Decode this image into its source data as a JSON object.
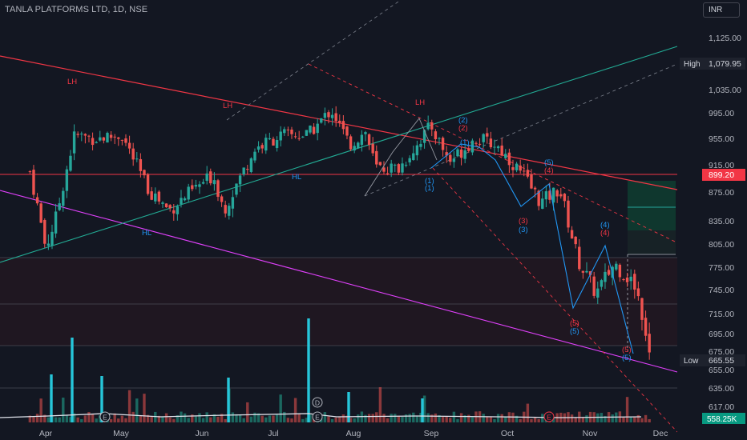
{
  "header": {
    "symbol_title": "TANLA PLATFORMS LTD, 1D, NSE",
    "currency": "INR"
  },
  "colors": {
    "background": "#131722",
    "up": "#26a69a",
    "down": "#ef5350",
    "volume": "#22ab94",
    "volume_spike": "#26c6da",
    "channel_top": "#f23645",
    "channel_bottom": "#e040fb",
    "trend_up": "#22ab94",
    "wave_blue": "#2196f3",
    "price_label": "#f23645",
    "volume_label": "#089981"
  },
  "chart_data": {
    "type": "candlestick",
    "x_tick_labels": [
      "Apr",
      "May",
      "Jun",
      "Jul",
      "Aug",
      "Sep",
      "Oct",
      "Nov",
      "Dec"
    ],
    "y_tick_labels": [
      "1,125.00",
      "1,035.00",
      "995.00",
      "955.00",
      "915.00",
      "875.00",
      "835.00",
      "805.00",
      "775.00",
      "745.00",
      "715.00",
      "695.00",
      "675.00",
      "655.00",
      "635.00",
      "617.00"
    ],
    "y_ticks": [
      1125,
      1035,
      995,
      955,
      915,
      875,
      835,
      805,
      775,
      745,
      715,
      695,
      675,
      655,
      635,
      617
    ],
    "high_label": "High",
    "high_value": "1,079.95",
    "low_label": "Low",
    "low_value": "665.55",
    "current_price": "899.20",
    "volume_label": "558.25K",
    "pattern_labels": {
      "lh": "LH",
      "hl": "HL",
      "w1": "(1)",
      "w2": "(2)",
      "w3": "(3)",
      "w4": "(4)",
      "w5": "(5)"
    },
    "event_markers": {
      "earnings": "E",
      "dividend": "D"
    },
    "approx_path": [
      [
        "2024-03-26",
        905
      ],
      [
        "2024-04-01",
        800
      ],
      [
        "2024-04-05",
        840
      ],
      [
        "2024-04-12",
        960
      ],
      [
        "2024-04-20",
        955
      ],
      [
        "2024-04-30",
        960
      ],
      [
        "2024-05-10",
        880
      ],
      [
        "2024-05-18",
        850
      ],
      [
        "2024-05-28",
        880
      ],
      [
        "2024-06-04",
        900
      ],
      [
        "2024-06-08",
        850
      ],
      [
        "2024-06-20",
        940
      ],
      [
        "2024-06-30",
        960
      ],
      [
        "2024-07-10",
        960
      ],
      [
        "2024-07-19",
        1000
      ],
      [
        "2024-07-26",
        945
      ],
      [
        "2024-08-01",
        965
      ],
      [
        "2024-08-05",
        910
      ],
      [
        "2024-08-14",
        910
      ],
      [
        "2024-08-26",
        975
      ],
      [
        "2024-09-02",
        920
      ],
      [
        "2024-09-12",
        955
      ],
      [
        "2024-09-20",
        945
      ],
      [
        "2024-09-30",
        900
      ],
      [
        "2024-10-07",
        860
      ],
      [
        "2024-10-14",
        880
      ],
      [
        "2024-10-21",
        785
      ],
      [
        "2024-10-28",
        740
      ],
      [
        "2024-11-04",
        780
      ],
      [
        "2024-11-12",
        750
      ],
      [
        "2024-11-18",
        672
      ]
    ]
  }
}
